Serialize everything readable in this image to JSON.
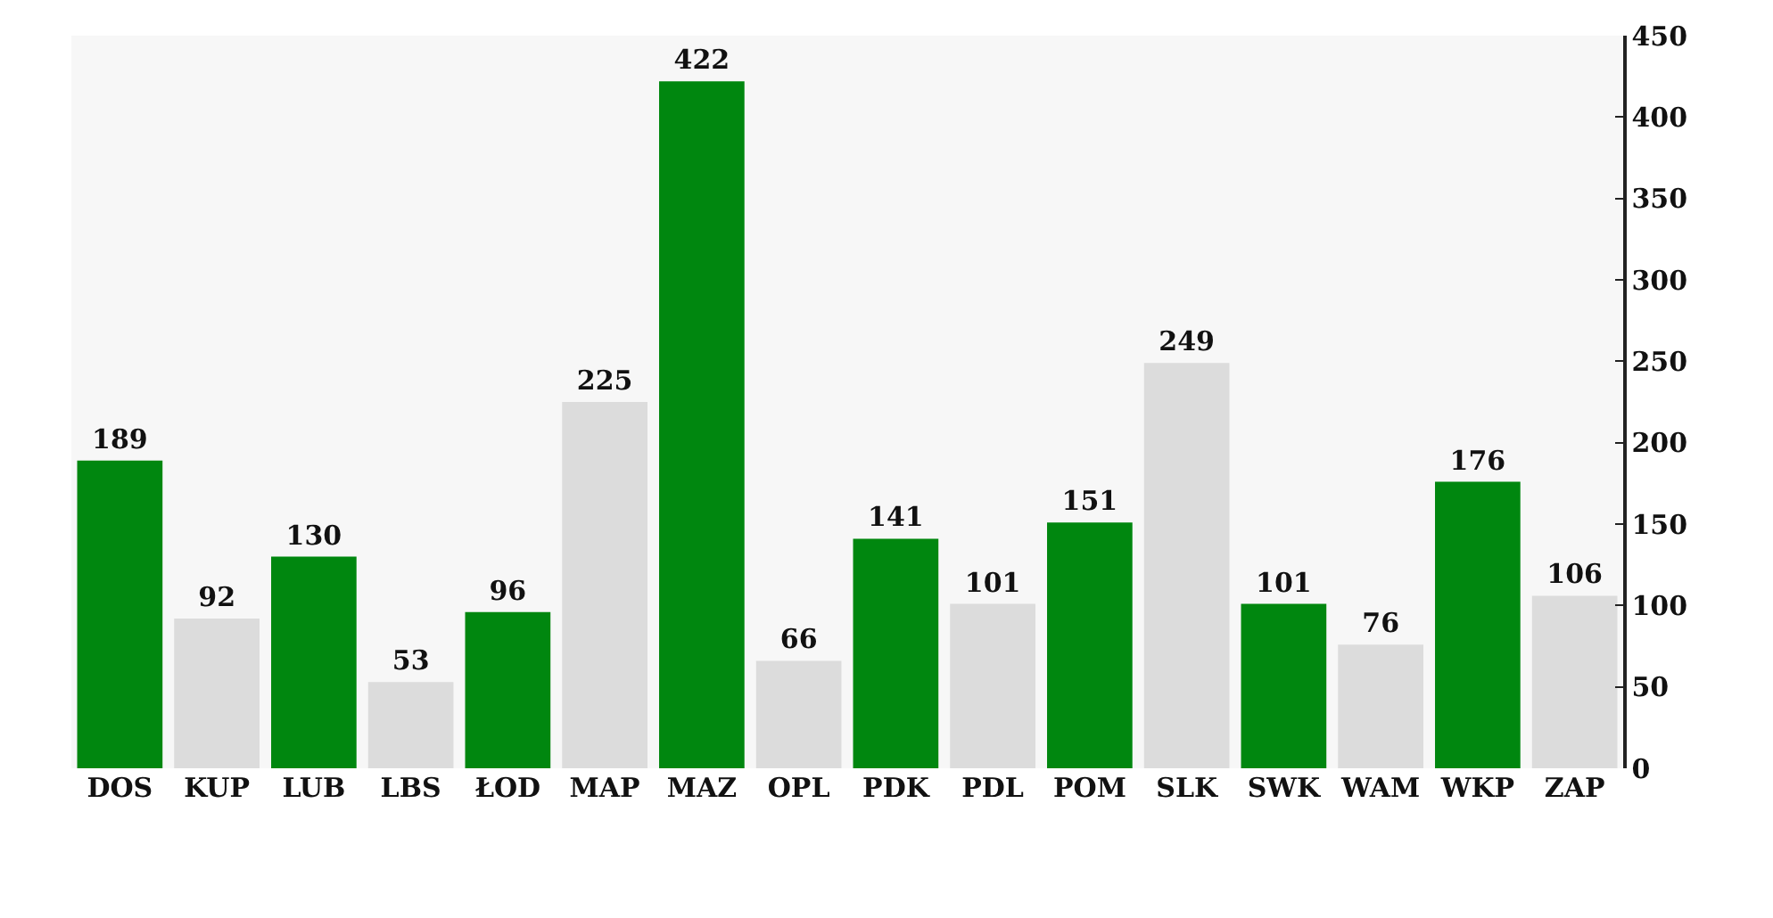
{
  "chart_data": {
    "type": "bar",
    "categories": [
      "DOS",
      "KUP",
      "LUB",
      "LBS",
      "ŁOD",
      "MAP",
      "MAZ",
      "OPL",
      "PDK",
      "PDL",
      "POM",
      "SLK",
      "SWK",
      "WAM",
      "WKP",
      "ZAP"
    ],
    "values": [
      189,
      92,
      130,
      53,
      96,
      225,
      422,
      66,
      141,
      101,
      151,
      249,
      101,
      76,
      176,
      106
    ],
    "colors": [
      "#00870f",
      "#dcdcdc",
      "#00870f",
      "#dcdcdc",
      "#00870f",
      "#dcdcdc",
      "#00870f",
      "#dcdcdc",
      "#00870f",
      "#dcdcdc",
      "#00870f",
      "#dcdcdc",
      "#00870f",
      "#dcdcdc",
      "#00870f",
      "#dcdcdc"
    ],
    "ylim": [
      0,
      450
    ],
    "yticks": [
      0,
      50,
      100,
      150,
      200,
      250,
      300,
      350,
      400,
      450
    ],
    "data_labels": true
  }
}
